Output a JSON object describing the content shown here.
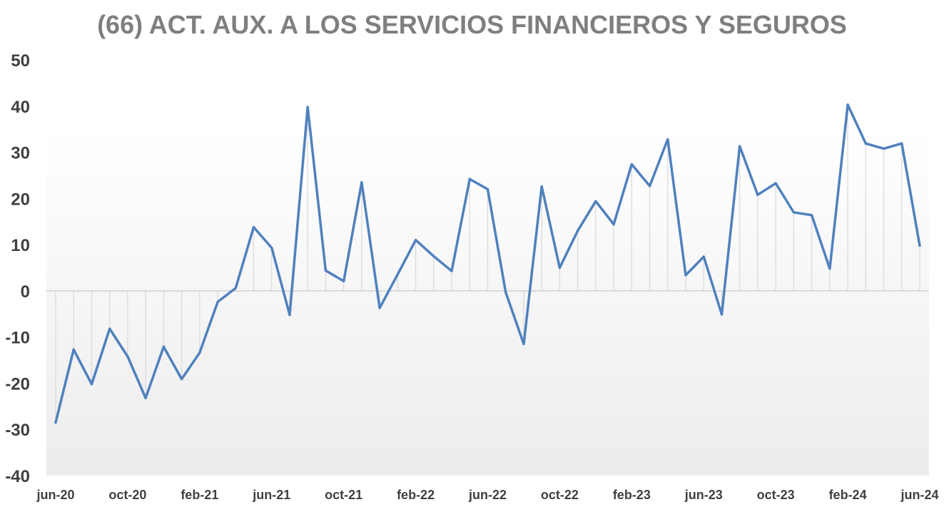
{
  "chart_data": {
    "type": "line",
    "title": "(66) ACT. AUX. A LOS SERVICIOS FINANCIEROS Y SEGUROS",
    "xlabel": "",
    "ylabel": "",
    "ylim": [
      -40,
      50
    ],
    "y_ticks": [
      50,
      40,
      30,
      20,
      10,
      0,
      -10,
      -20,
      -30,
      -40
    ],
    "x_tick_labels": [
      "jun-20",
      "oct-20",
      "feb-21",
      "jun-21",
      "oct-21",
      "feb-22",
      "jun-22",
      "oct-22",
      "feb-23",
      "jun-23",
      "oct-23",
      "feb-24",
      "jun-24"
    ],
    "grid": false,
    "colors": {
      "line": "#4f81bd",
      "title": "#7f7f7f",
      "ticks": "#404040"
    },
    "categories": [
      "jun-20",
      "jul-20",
      "ago-20",
      "sep-20",
      "oct-20",
      "nov-20",
      "dic-20",
      "ene-21",
      "feb-21",
      "mar-21",
      "abr-21",
      "may-21",
      "jun-21",
      "jul-21",
      "ago-21",
      "sep-21",
      "oct-21",
      "nov-21",
      "dic-21",
      "ene-22",
      "feb-22",
      "mar-22",
      "abr-22",
      "may-22",
      "jun-22",
      "jul-22",
      "ago-22",
      "sep-22",
      "oct-22",
      "nov-22",
      "dic-22",
      "ene-23",
      "feb-23",
      "mar-23",
      "abr-23",
      "may-23",
      "jun-23",
      "jul-23",
      "ago-23",
      "sep-23",
      "oct-23",
      "nov-23",
      "dic-23",
      "ene-24",
      "feb-24",
      "mar-24",
      "abr-24",
      "may-24",
      "jun-24"
    ],
    "values": [
      -28.5,
      -12.7,
      -20.2,
      -8.2,
      -14.2,
      -23.2,
      -12.1,
      -19.1,
      -13.4,
      -2.4,
      0.6,
      13.8,
      9.3,
      -5.2,
      39.8,
      4.4,
      2.1,
      23.5,
      -3.7,
      3.6,
      11.0,
      7.5,
      4.3,
      24.2,
      22.0,
      -0.3,
      -11.5,
      22.6,
      5.0,
      13.0,
      19.4,
      14.4,
      27.4,
      22.7,
      32.8,
      3.4,
      7.4,
      -5.1,
      31.3,
      20.8,
      23.3,
      17.0,
      16.4,
      4.8,
      40.3,
      31.9,
      30.8,
      31.9,
      9.8
    ]
  }
}
